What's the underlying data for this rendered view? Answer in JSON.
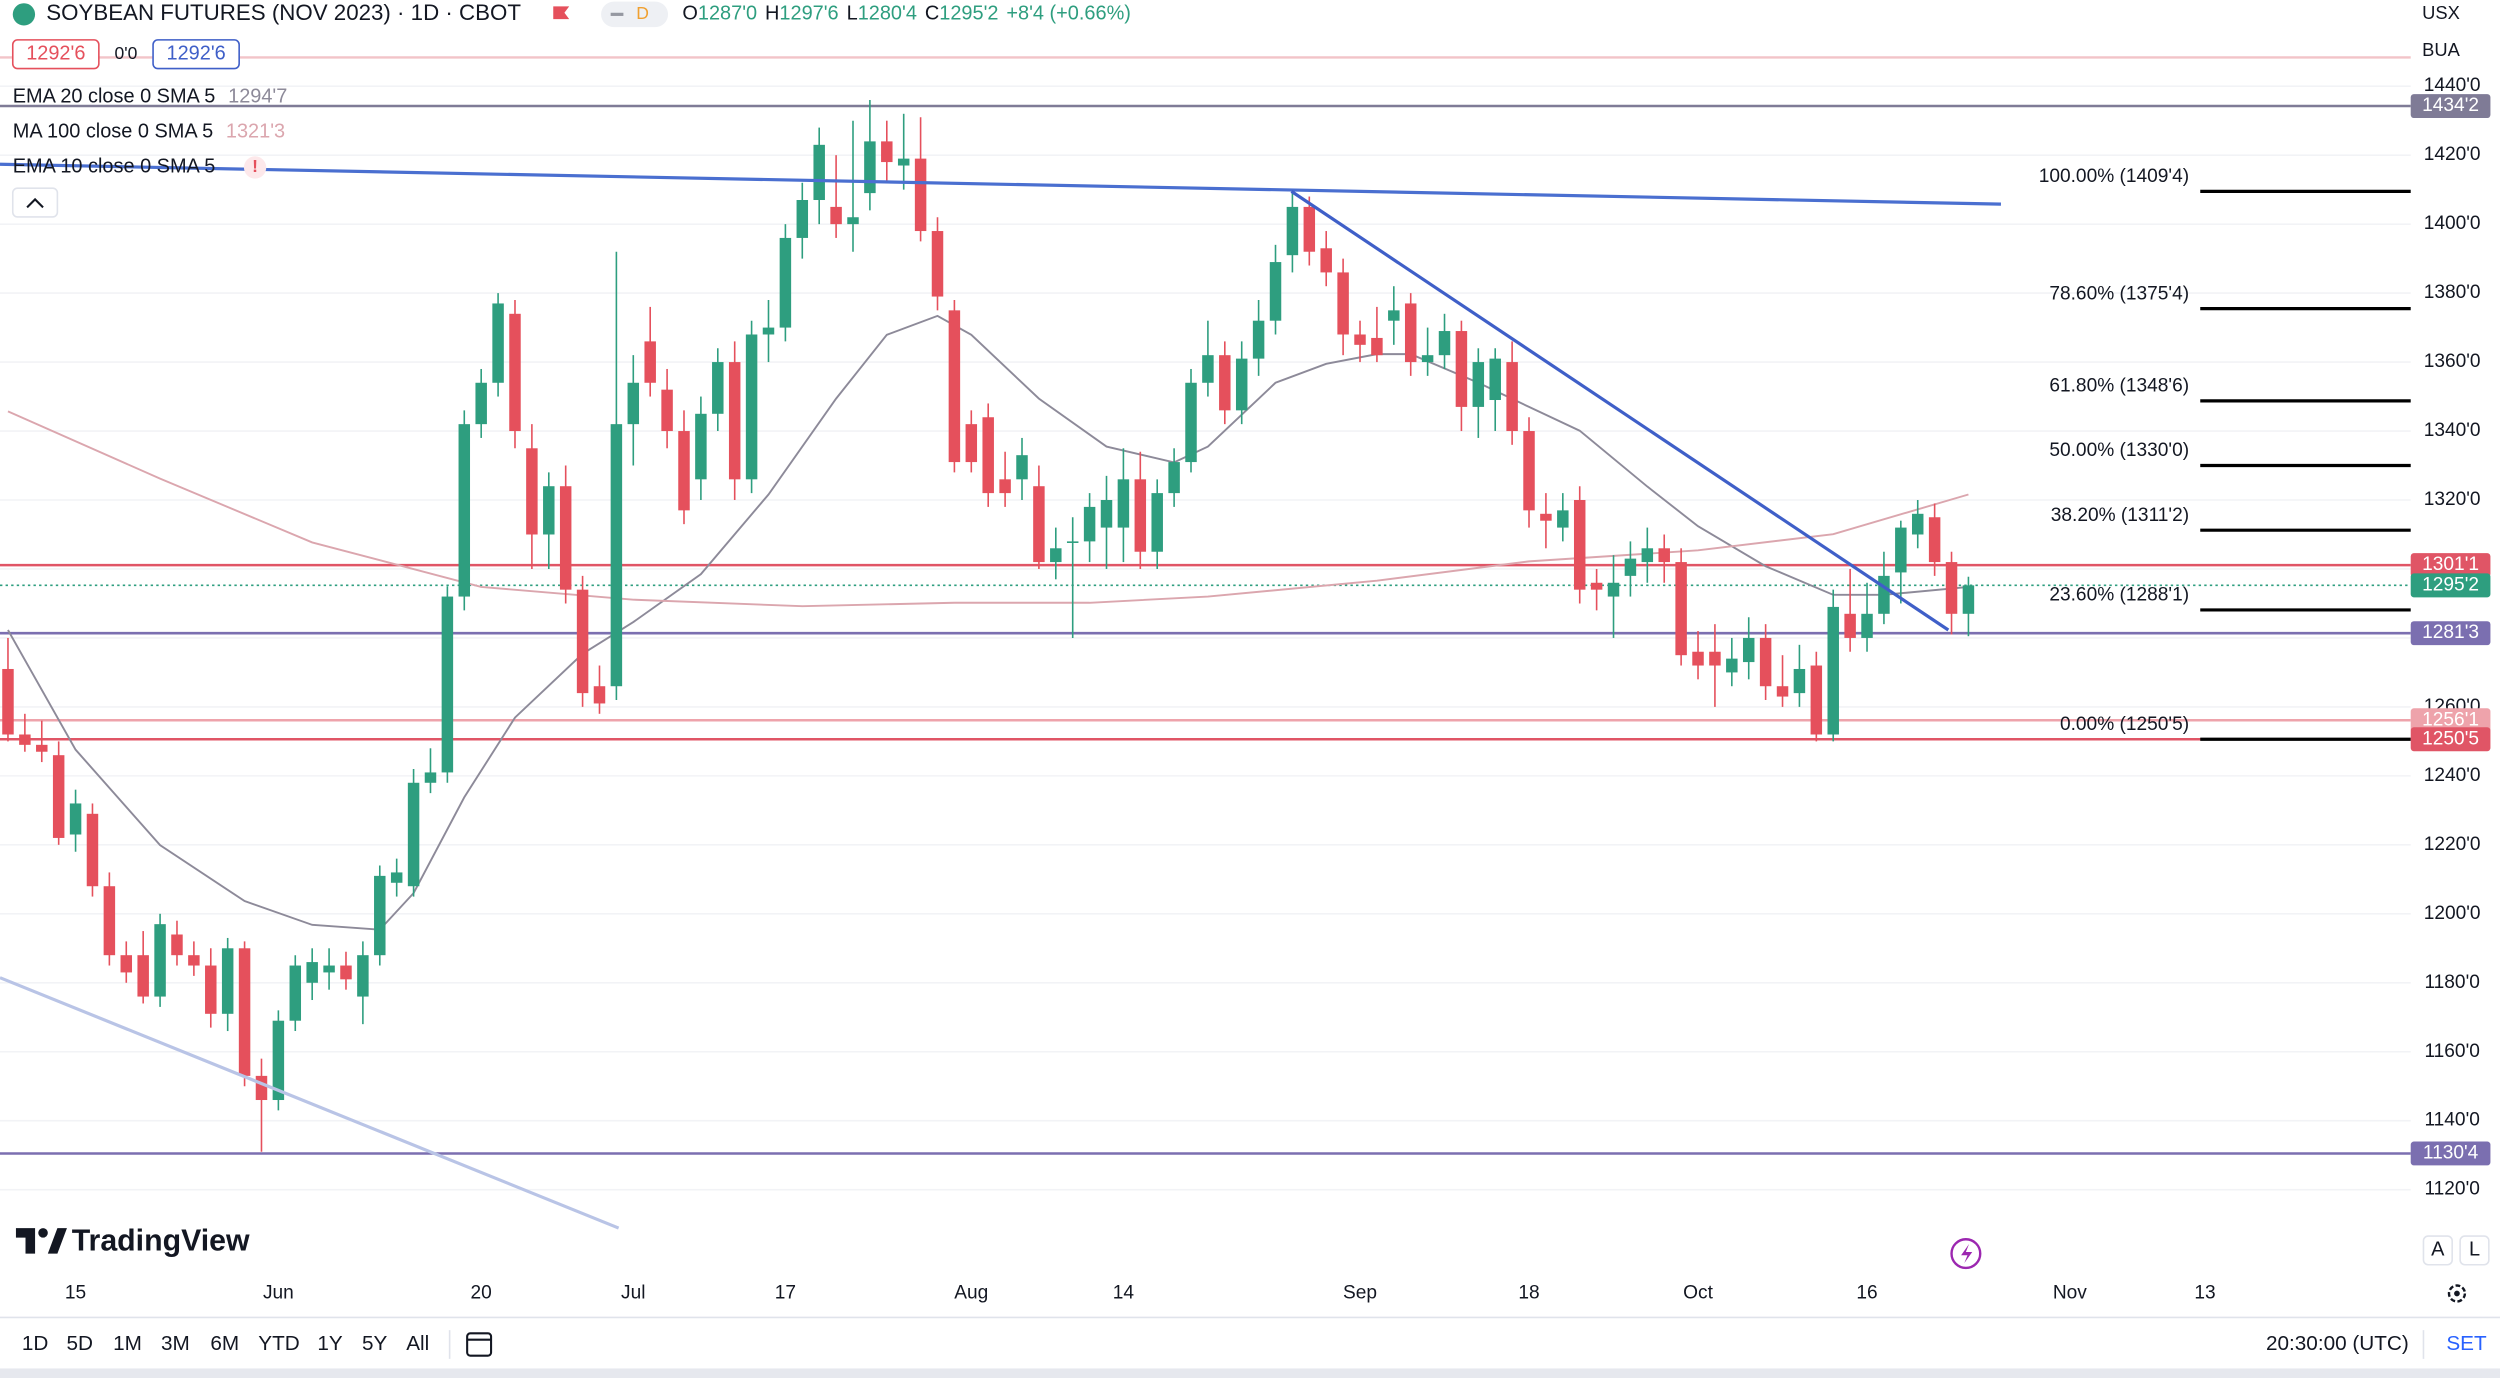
{
  "header": {
    "title": "SOYBEAN FUTURES (NOV 2023) · 1D · CBOT",
    "interval_badge": "D",
    "ohlc": [
      {
        "key": "O",
        "value": "1287'0"
      },
      {
        "key": "H",
        "value": "1297'6"
      },
      {
        "key": "L",
        "value": "1280'4"
      },
      {
        "key": "C",
        "value": "1295'2"
      }
    ],
    "change": "+8'4 (+0.66%)",
    "sell": "1292'6",
    "spread": "0'0",
    "buy": "1292'6",
    "currency": "USX",
    "unit": "BUA"
  },
  "footer": {
    "logo": "TradingView",
    "timeframes": [
      "1D",
      "5D",
      "1M",
      "3M",
      "6M",
      "YTD",
      "1Y",
      "5Y",
      "All"
    ],
    "time": "20:30:00 (UTC)",
    "settings": "SET",
    "scale_buttons": [
      "A",
      "L"
    ]
  },
  "chart_data": {
    "type": "candlestick",
    "up_color": "#2e9e7f",
    "down_color": "#e5505c",
    "grid": true,
    "ylim": [
      1097.3,
      1465.0
    ],
    "yticks": [
      {
        "value": 1120,
        "label": "1120'0"
      },
      {
        "value": 1140,
        "label": "1140'0"
      },
      {
        "value": 1160,
        "label": "1160'0"
      },
      {
        "value": 1180,
        "label": "1180'0"
      },
      {
        "value": 1200,
        "label": "1200'0"
      },
      {
        "value": 1220,
        "label": "1220'0"
      },
      {
        "value": 1240,
        "label": "1240'0"
      },
      {
        "value": 1260,
        "label": "1260'0"
      },
      {
        "value": 1280,
        "label": "1280'0"
      },
      {
        "value": 1300,
        "label": "1300'0"
      },
      {
        "value": 1320,
        "label": "1320'0"
      },
      {
        "value": 1340,
        "label": "1340'0"
      },
      {
        "value": 1360,
        "label": "1360'0"
      },
      {
        "value": 1380,
        "label": "1380'0"
      },
      {
        "value": 1400,
        "label": "1400'0"
      },
      {
        "value": 1420,
        "label": "1420'0"
      },
      {
        "value": 1440,
        "label": "1440'0"
      }
    ],
    "categories": [
      null,
      null,
      null,
      null,
      "15",
      null,
      null,
      null,
      null,
      null,
      null,
      null,
      null,
      null,
      null,
      null,
      "Jun",
      null,
      null,
      null,
      null,
      null,
      null,
      null,
      null,
      null,
      null,
      null,
      "20",
      null,
      null,
      null,
      null,
      null,
      null,
      null,
      null,
      "Jul",
      null,
      null,
      null,
      null,
      null,
      null,
      null,
      null,
      "17",
      null,
      null,
      null,
      null,
      null,
      null,
      null,
      null,
      null,
      null,
      "Aug",
      null,
      null,
      null,
      null,
      null,
      null,
      null,
      null,
      "14",
      null,
      null,
      null,
      null,
      null,
      null,
      null,
      null,
      null,
      null,
      null,
      null,
      null,
      "Sep",
      null,
      null,
      null,
      null,
      null,
      null,
      null,
      null,
      null,
      "18",
      null,
      null,
      null,
      null,
      null,
      null,
      null,
      null,
      null,
      "Oct",
      null,
      null,
      null,
      null,
      null,
      null,
      null,
      null,
      null,
      "16",
      null,
      null,
      null,
      null,
      null,
      null,
      null,
      null,
      null,
      null,
      null,
      "Nov",
      null,
      null,
      null,
      null,
      null,
      null,
      null,
      "13"
    ],
    "open": [
      1271,
      1252,
      1249,
      1246,
      1223,
      1229,
      1208,
      1188,
      1188,
      1176,
      1194,
      1188,
      1185,
      1171,
      1190,
      1153,
      1146,
      1169,
      1180,
      1183,
      1185,
      1176,
      1188,
      1209,
      1208,
      1238,
      1241,
      1292,
      1342,
      1354,
      1374,
      1335,
      1310,
      1324,
      1294,
      1266,
      1266,
      1342,
      1366,
      1352,
      1340,
      1326,
      1345,
      1360,
      1326,
      1368,
      1370,
      1396,
      1407,
      1405,
      1400,
      1409,
      1424,
      1417,
      1419,
      1398,
      1375,
      1342,
      1344,
      1326,
      1326,
      1324,
      1302,
      1308,
      1308,
      1312,
      1312,
      1326,
      1305,
      1322,
      1331,
      1354,
      1362,
      1346,
      1361,
      1372,
      1391,
      1405,
      1393,
      1386,
      1368,
      1367,
      1372,
      1377,
      1360,
      1362,
      1369,
      1347,
      1349,
      1360,
      1340,
      1316,
      1312,
      1320,
      1296,
      1292,
      1298,
      1302,
      1306,
      1302,
      1276,
      1276,
      1270,
      1273,
      1280,
      1266,
      1264,
      1272,
      1252,
      1287,
      1280,
      1287,
      1299,
      1310,
      1315,
      1302,
      1287,
      null,
      null,
      null,
      null,
      null,
      null,
      null,
      null,
      null,
      null,
      null,
      null,
      null,
      null
    ],
    "high": [
      1280,
      1258,
      1256,
      1250,
      1236,
      1232,
      1212,
      1192,
      1195,
      1200,
      1198,
      1192,
      1190,
      1193,
      1192,
      1158,
      1172,
      1188,
      1190,
      1190,
      1189,
      1192,
      1214,
      1216,
      1242,
      1248,
      1295,
      1346,
      1358,
      1380,
      1378,
      1342,
      1328,
      1330,
      1298,
      1272,
      1392,
      1362,
      1376,
      1358,
      1346,
      1350,
      1364,
      1366,
      1372,
      1378,
      1400,
      1412,
      1428,
      1420,
      1430,
      1436,
      1430,
      1432,
      1431,
      1402,
      1378,
      1346,
      1348,
      1334,
      1338,
      1330,
      1312,
      1315,
      1322,
      1327,
      1335,
      1334,
      1326,
      1335,
      1358,
      1372,
      1366,
      1366,
      1378,
      1394,
      1409,
      1408,
      1398,
      1390,
      1372,
      1376,
      1382,
      1380,
      1370,
      1374,
      1372,
      1364,
      1364,
      1366,
      1344,
      1322,
      1322,
      1324,
      1300,
      1304,
      1308,
      1312,
      1310,
      1306,
      1282,
      1284,
      1280,
      1286,
      1284,
      1275,
      1278,
      1276,
      1294,
      1300,
      1296,
      1305,
      1314,
      1320,
      1319,
      1305,
      1297.75,
      null,
      null,
      null,
      null,
      null,
      null,
      null,
      null,
      null,
      null,
      null,
      null,
      null,
      null
    ],
    "low": [
      1250,
      1247,
      1244,
      1220,
      1218,
      1205,
      1185,
      1180,
      1174,
      1173,
      1185,
      1182,
      1167,
      1166,
      1150,
      1131,
      1143,
      1166,
      1175,
      1178,
      1178,
      1168,
      1185,
      1205,
      1205,
      1235,
      1238,
      1288,
      1338,
      1350,
      1335,
      1300,
      1300,
      1290,
      1260,
      1258,
      1262,
      1330,
      1350,
      1335,
      1313,
      1320,
      1340,
      1320,
      1322,
      1360,
      1366,
      1390,
      1400,
      1396,
      1392,
      1404,
      1412,
      1410,
      1395,
      1375,
      1328,
      1328,
      1318,
      1318,
      1320,
      1300,
      1297,
      1280,
      1302,
      1300,
      1302,
      1300,
      1300,
      1318,
      1328,
      1350,
      1342,
      1342,
      1356,
      1368,
      1386,
      1388,
      1382,
      1362,
      1360,
      1360,
      1365,
      1356,
      1356,
      1358,
      1340,
      1338,
      1340,
      1336,
      1312,
      1306,
      1308,
      1290,
      1288,
      1280,
      1292,
      1296,
      1296,
      1272,
      1268,
      1260,
      1266,
      1268,
      1262,
      1260,
      1260,
      1250,
      1250,
      1276,
      1276,
      1284,
      1290,
      1306,
      1298,
      1281,
      1280.5,
      null,
      null,
      null,
      null,
      null,
      null,
      null,
      null,
      null,
      null,
      null,
      null,
      null,
      null
    ],
    "close": [
      1252,
      1249,
      1247,
      1222,
      1232,
      1208,
      1188,
      1183,
      1176,
      1197,
      1188,
      1185,
      1171,
      1190,
      1153,
      1146,
      1169,
      1185,
      1186,
      1185,
      1181,
      1188,
      1211,
      1212,
      1238,
      1241,
      1292,
      1342,
      1354,
      1377,
      1340,
      1310,
      1324,
      1294,
      1264,
      1261,
      1342,
      1354,
      1354,
      1340,
      1317,
      1345,
      1360,
      1326,
      1368,
      1370,
      1396,
      1407,
      1423,
      1400,
      1402,
      1424,
      1418,
      1419,
      1398,
      1379,
      1331,
      1331,
      1322,
      1322,
      1333,
      1302,
      1306,
      1308,
      1318,
      1320,
      1326,
      1305,
      1322,
      1331,
      1354,
      1362,
      1346,
      1361,
      1372,
      1389,
      1405,
      1392,
      1386,
      1368,
      1365,
      1362,
      1375,
      1360,
      1362,
      1369,
      1347,
      1360,
      1361,
      1340,
      1317,
      1314,
      1317,
      1294,
      1294,
      1296,
      1303,
      1306,
      1302,
      1275,
      1272,
      1272,
      1274,
      1280,
      1266,
      1263,
      1271,
      1252,
      1289,
      1280,
      1287,
      1298,
      1312,
      1316,
      1302,
      1287,
      1295.25,
      null,
      null,
      null,
      null,
      null,
      null,
      null,
      null,
      null,
      null,
      null,
      null,
      null,
      null
    ],
    "indicators": [
      {
        "name": "EMA 20 close 0 SMA 5",
        "value_label": "1294'7",
        "color": "#8d8a99",
        "x": [
          0,
          4,
          9,
          14,
          18,
          22,
          24,
          27,
          30,
          34,
          37,
          41,
          45,
          49,
          52,
          55,
          57,
          61,
          65,
          69,
          71,
          75,
          78,
          81,
          83,
          87,
          90,
          93,
          97,
          100,
          104,
          108,
          111,
          116
        ],
        "values": [
          1282.3,
          1247.6,
          1219.9,
          1203.7,
          1196.8,
          1195.4,
          1206,
          1233.8,
          1256.9,
          1275.4,
          1284.6,
          1298.5,
          1321.6,
          1349.4,
          1367.9,
          1373.4,
          1367.9,
          1349.4,
          1335.5,
          1330.9,
          1335.5,
          1354,
          1359.5,
          1362.3,
          1362.3,
          1354,
          1347,
          1340.1,
          1323.9,
          1312.4,
          1300.8,
          1292.5,
          1292.5,
          1294.8
        ]
      },
      {
        "name": "MA 100 close 0 SMA 5",
        "value_label": "1321'3",
        "color": "#dba6ae",
        "x": [
          0,
          9,
          18,
          28,
          37,
          47,
          56,
          64,
          71,
          81,
          90,
          100,
          108,
          116
        ],
        "values": [
          1345.7,
          1326.2,
          1307.7,
          1294.8,
          1291.1,
          1289.2,
          1290.2,
          1290.2,
          1292,
          1296.6,
          1302.2,
          1305.4,
          1310.1,
          1321.6
        ]
      },
      {
        "name": "EMA 10 close 0 SMA 5",
        "alert": "!"
      }
    ],
    "price_lines": [
      {
        "value": 1434.25,
        "label": "1434'2",
        "color": "#7f7b96"
      },
      {
        "value": 1301.125,
        "label": "1301'1",
        "color": "#e05566"
      },
      {
        "value": 1295.25,
        "label": "1295'2",
        "color": "#2e9e7f",
        "style": "dotted"
      },
      {
        "value": 1281.375,
        "label": "1281'3",
        "color": "#7b6fb0"
      },
      {
        "value": 1256.125,
        "label": "1256'1",
        "color": "#eea3ab"
      },
      {
        "value": 1250.625,
        "label": "1250'5",
        "color": "#e05566"
      },
      {
        "value": 1130.5,
        "label": "1130'4",
        "color": "#7b6fb0"
      }
    ],
    "fib_color": "#000000",
    "fib_levels": [
      {
        "value": 1409.5,
        "label": "100.00% (1409'4)"
      },
      {
        "value": 1375.5,
        "label": "78.60% (1375'4)"
      },
      {
        "value": 1348.75,
        "label": "61.80% (1348'6)"
      },
      {
        "value": 1330,
        "label": "50.00% (1330'0)"
      },
      {
        "value": 1311.25,
        "label": "38.20% (1311'2)"
      },
      {
        "value": 1288.125,
        "label": "23.60% (1288'1)"
      },
      {
        "value": 1250.625,
        "label": "0.00% (1250'5)"
      }
    ]
  }
}
